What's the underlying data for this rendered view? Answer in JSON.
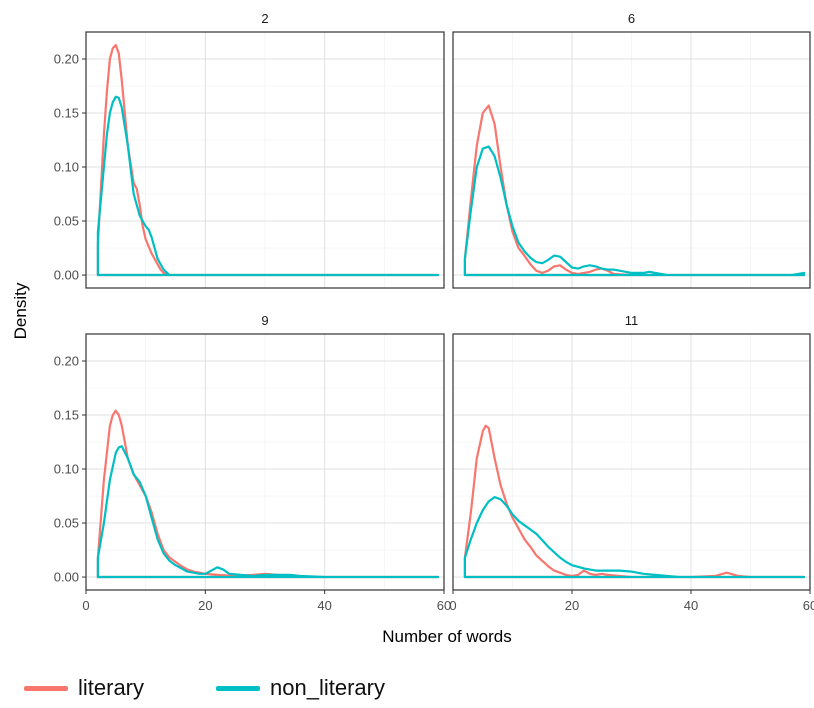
{
  "chart_data": {
    "type": "line",
    "xlabel": "Number of words",
    "ylabel": "Density",
    "xlim": [
      0,
      60
    ],
    "ylim": [
      -0.012,
      0.225
    ],
    "xticks": [
      "0",
      "20",
      "40",
      "60"
    ],
    "yticks": [
      "0.00",
      "0.05",
      "0.10",
      "0.15",
      "0.20"
    ],
    "grid": true,
    "legend_position": "bottom",
    "colors": {
      "literary": "#F8766D",
      "non_literary": "#00BFC4",
      "grid": "#e0e0e0",
      "frame": "#333333"
    },
    "series_names": [
      "literary",
      "non_literary"
    ],
    "panels": [
      {
        "label": "2",
        "series": [
          {
            "name": "literary",
            "x": [
              2,
              2.5,
              3,
              3.5,
              4,
              4.5,
              5,
              5.5,
              6,
              7,
              8,
              8.5,
              9,
              9.5,
              10,
              11,
              12,
              12.5,
              13,
              14,
              20,
              40,
              59
            ],
            "y": [
              0.028,
              0.08,
              0.13,
              0.17,
              0.2,
              0.21,
              0.213,
              0.205,
              0.18,
              0.12,
              0.085,
              0.08,
              0.065,
              0.045,
              0.033,
              0.02,
              0.01,
              0.005,
              0.002,
              0.0,
              0.0,
              0.0,
              0.0
            ]
          },
          {
            "name": "non_literary",
            "x": [
              2,
              2.5,
              3,
              3.5,
              4,
              4.5,
              5,
              5.5,
              6,
              7,
              8,
              9,
              10,
              10.5,
              11,
              12,
              13,
              14,
              20,
              40,
              59
            ],
            "y": [
              0.04,
              0.07,
              0.1,
              0.13,
              0.15,
              0.16,
              0.165,
              0.164,
              0.155,
              0.12,
              0.075,
              0.055,
              0.045,
              0.042,
              0.035,
              0.015,
              0.005,
              0.0,
              0.0,
              0.0,
              0.0
            ]
          }
        ]
      },
      {
        "label": "6",
        "series": [
          {
            "name": "literary",
            "x": [
              2,
              3,
              4,
              5,
              6,
              7,
              8,
              9,
              10,
              11,
              12,
              13,
              14,
              15,
              16,
              17,
              18,
              19,
              20,
              21,
              22,
              23,
              24,
              25,
              26,
              27,
              30,
              40,
              59
            ],
            "y": [
              0.015,
              0.07,
              0.12,
              0.15,
              0.157,
              0.14,
              0.1,
              0.065,
              0.04,
              0.025,
              0.018,
              0.01,
              0.004,
              0.002,
              0.004,
              0.008,
              0.009,
              0.005,
              0.002,
              0.001,
              0.002,
              0.003,
              0.005,
              0.006,
              0.004,
              0.001,
              0.0,
              0.0,
              0.0
            ]
          },
          {
            "name": "non_literary",
            "x": [
              2,
              3,
              4,
              5,
              6,
              7,
              8,
              9,
              10,
              11,
              12,
              13,
              14,
              15,
              16,
              17,
              18,
              19,
              20,
              21,
              22,
              23,
              24,
              25,
              26,
              27,
              28,
              30,
              32,
              33,
              34,
              36,
              40,
              50,
              57,
              58,
              59
            ],
            "y": [
              0.015,
              0.06,
              0.1,
              0.117,
              0.119,
              0.11,
              0.09,
              0.065,
              0.045,
              0.03,
              0.022,
              0.016,
              0.012,
              0.011,
              0.014,
              0.018,
              0.017,
              0.012,
              0.007,
              0.006,
              0.008,
              0.009,
              0.008,
              0.006,
              0.005,
              0.005,
              0.004,
              0.002,
              0.002,
              0.003,
              0.002,
              0.0,
              0.0,
              0.0,
              0.0,
              0.001,
              0.002
            ]
          }
        ]
      },
      {
        "label": "9",
        "series": [
          {
            "name": "literary",
            "x": [
              2,
              3,
              4,
              4.5,
              5,
              5.5,
              6,
              7,
              8,
              9,
              10,
              11,
              12,
              13,
              14,
              15,
              16,
              17,
              18,
              19,
              20,
              22,
              25,
              28,
              30,
              32,
              34,
              36,
              40,
              59
            ],
            "y": [
              0.018,
              0.09,
              0.14,
              0.15,
              0.154,
              0.15,
              0.14,
              0.11,
              0.095,
              0.085,
              0.075,
              0.06,
              0.04,
              0.025,
              0.018,
              0.014,
              0.01,
              0.007,
              0.005,
              0.004,
              0.003,
              0.002,
              0.001,
              0.002,
              0.003,
              0.002,
              0.001,
              0.0,
              0.0,
              0.0
            ]
          },
          {
            "name": "non_literary",
            "x": [
              2,
              3,
              4,
              5,
              5.5,
              6,
              7,
              8,
              9,
              10,
              11,
              12,
              13,
              14,
              15,
              16,
              17,
              18,
              19,
              20,
              21,
              22,
              23,
              24,
              26,
              28,
              30,
              32,
              34,
              36,
              40,
              59
            ],
            "y": [
              0.018,
              0.05,
              0.09,
              0.115,
              0.12,
              0.121,
              0.11,
              0.095,
              0.088,
              0.075,
              0.055,
              0.035,
              0.022,
              0.015,
              0.011,
              0.008,
              0.005,
              0.004,
              0.003,
              0.003,
              0.006,
              0.009,
              0.007,
              0.003,
              0.002,
              0.001,
              0.002,
              0.002,
              0.002,
              0.001,
              0.0,
              0.0
            ]
          }
        ]
      },
      {
        "label": "11",
        "series": [
          {
            "name": "literary",
            "x": [
              2,
              3,
              4,
              5,
              5.5,
              6,
              7,
              8,
              9,
              10,
              11,
              12,
              13,
              14,
              15,
              16,
              17,
              18,
              19,
              20,
              21,
              22,
              23,
              24,
              25,
              26,
              28,
              30,
              35,
              40,
              44,
              46,
              48,
              50,
              59
            ],
            "y": [
              0.018,
              0.06,
              0.11,
              0.135,
              0.14,
              0.138,
              0.11,
              0.085,
              0.068,
              0.055,
              0.045,
              0.035,
              0.028,
              0.02,
              0.015,
              0.01,
              0.006,
              0.004,
              0.002,
              0.001,
              0.002,
              0.006,
              0.003,
              0.002,
              0.003,
              0.002,
              0.001,
              0.0,
              0.0,
              0.0,
              0.001,
              0.004,
              0.001,
              0.0,
              0.0
            ]
          },
          {
            "name": "non_literary",
            "x": [
              2,
              3,
              4,
              5,
              6,
              7,
              8,
              9,
              10,
              11,
              12,
              13,
              14,
              15,
              16,
              17,
              18,
              19,
              20,
              22,
              24,
              26,
              28,
              30,
              32,
              34,
              36,
              38,
              40,
              50,
              59
            ],
            "y": [
              0.018,
              0.035,
              0.05,
              0.062,
              0.07,
              0.074,
              0.072,
              0.066,
              0.058,
              0.052,
              0.048,
              0.044,
              0.04,
              0.034,
              0.028,
              0.023,
              0.018,
              0.014,
              0.011,
              0.008,
              0.006,
              0.006,
              0.006,
              0.005,
              0.003,
              0.002,
              0.001,
              0.0,
              0.0,
              0.0,
              0.0
            ]
          }
        ]
      }
    ]
  }
}
